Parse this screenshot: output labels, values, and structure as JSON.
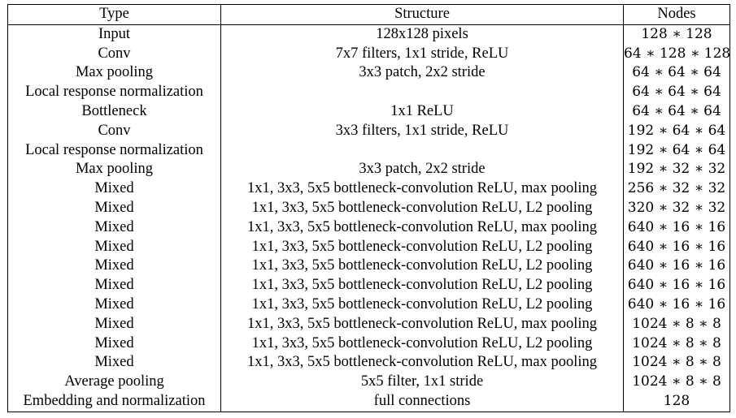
{
  "headers": [
    "Type",
    "Structure",
    "Nodes"
  ],
  "rows": [
    {
      "type": "Input",
      "structure": "128x128 pixels",
      "nodes": "128 ∗ 128"
    },
    {
      "type": "Conv",
      "structure": "7x7 filters, 1x1 stride, ReLU",
      "nodes": "64 ∗ 128 ∗ 128"
    },
    {
      "type": "Max pooling",
      "structure": "3x3 patch, 2x2 stride",
      "nodes": "64 ∗ 64 ∗ 64"
    },
    {
      "type": "Local response normalization",
      "structure": "",
      "nodes": "64 ∗ 64 ∗ 64"
    },
    {
      "type": "Bottleneck",
      "structure": "1x1 ReLU",
      "nodes": "64 ∗ 64 ∗ 64"
    },
    {
      "type": "Conv",
      "structure": "3x3 filters, 1x1 stride, ReLU",
      "nodes": "192 ∗ 64 ∗ 64"
    },
    {
      "type": "Local response normalization",
      "structure": "",
      "nodes": "192 ∗ 64 ∗ 64"
    },
    {
      "type": "Max pooling",
      "structure": "3x3 patch, 2x2 stride",
      "nodes": "192 ∗ 32 ∗ 32"
    },
    {
      "type": "Mixed",
      "structure": "1x1, 3x3, 5x5 bottleneck-convolution ReLU, max pooling",
      "nodes": "256 ∗ 32 ∗ 32"
    },
    {
      "type": "Mixed",
      "structure": "1x1, 3x3, 5x5 bottleneck-convolution ReLU, L2 pooling",
      "nodes": "320 ∗ 32 ∗ 32"
    },
    {
      "type": "Mixed",
      "structure": "1x1, 3x3, 5x5 bottleneck-convolution ReLU, max pooling",
      "nodes": "640 ∗ 16 ∗ 16"
    },
    {
      "type": "Mixed",
      "structure": "1x1, 3x3, 5x5 bottleneck-convolution ReLU, L2 pooling",
      "nodes": "640 ∗ 16 ∗ 16"
    },
    {
      "type": "Mixed",
      "structure": "1x1, 3x3, 5x5 bottleneck-convolution ReLU, L2 pooling",
      "nodes": "640 ∗ 16 ∗ 16"
    },
    {
      "type": "Mixed",
      "structure": "1x1, 3x3, 5x5 bottleneck-convolution ReLU, L2 pooling",
      "nodes": "640 ∗ 16 ∗ 16"
    },
    {
      "type": "Mixed",
      "structure": "1x1, 3x3, 5x5 bottleneck-convolution ReLU, L2 pooling",
      "nodes": "640 ∗ 16 ∗ 16"
    },
    {
      "type": "Mixed",
      "structure": "1x1, 3x3, 5x5 bottleneck-convolution ReLU, max pooling",
      "nodes": "1024 ∗ 8 ∗ 8"
    },
    {
      "type": "Mixed",
      "structure": "1x1, 3x3, 5x5 bottleneck-convolution ReLU, L2 pooling",
      "nodes": "1024 ∗ 8 ∗ 8"
    },
    {
      "type": "Mixed",
      "structure": "1x1, 3x3, 5x5 bottleneck-convolution ReLU, max pooling",
      "nodes": "1024 ∗ 8 ∗ 8"
    },
    {
      "type": "Average pooling",
      "structure": "5x5 filter, 1x1 stride",
      "nodes": "1024 ∗ 8 ∗ 8"
    },
    {
      "type": "Embedding and normalization",
      "structure": "full connections",
      "nodes": "128"
    }
  ]
}
